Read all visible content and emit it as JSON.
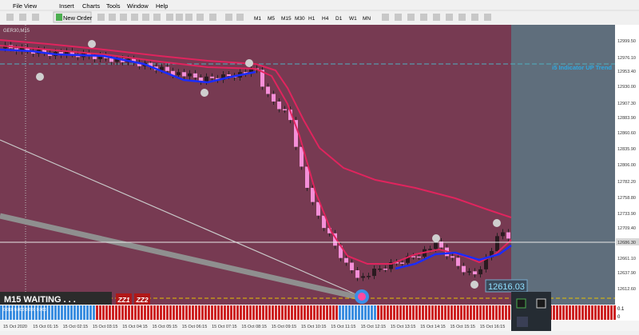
{
  "menu": [
    "File",
    "View",
    "Insert",
    "Charts",
    "Tools",
    "Window",
    "Help"
  ],
  "toolbar": {
    "new_order": "New Order",
    "timeframes": [
      "M1",
      "M5",
      "M15",
      "M30",
      "H1",
      "H4",
      "D1",
      "W1",
      "MN"
    ]
  },
  "chart": {
    "symbol": "GER30,M15",
    "indicator_label": "i5 Indicator UP Trend",
    "status": "M15 WAITING . . .",
    "zz": [
      "ZZ1",
      "ZZ2"
    ],
    "price_tag": "12616.03",
    "price_axis": [
      "12999.50",
      "12976.10",
      "12953.40",
      "12930.00",
      "12907.30",
      "12883.90",
      "12860.60",
      "12835.90",
      "12806.00",
      "12782.20",
      "12758.80",
      "12733.90",
      "12709.40",
      "12686.30",
      "12661.10",
      "12637.90",
      "12612.60"
    ],
    "time_axis": [
      "15 Oct 2020",
      "15 Oct 01:15",
      "15 Oct 02:15",
      "15 Oct 03:15",
      "15 Oct 04:15",
      "15 Oct 05:15",
      "15 Oct 06:15",
      "15 Oct 07:15",
      "15 Oct 08:15",
      "15 Oct 09:15",
      "15 Oct 10:15",
      "15 Oct 11:15",
      "15 Oct 12:15",
      "15 Oct 13:15",
      "15 Oct 14:15",
      "15 Oct 15:15",
      "15 Oct 16:15"
    ],
    "sub_axis": [
      "0.1",
      "0"
    ],
    "sub_info": "0.018 0.000 0.000 0.000"
  }
}
